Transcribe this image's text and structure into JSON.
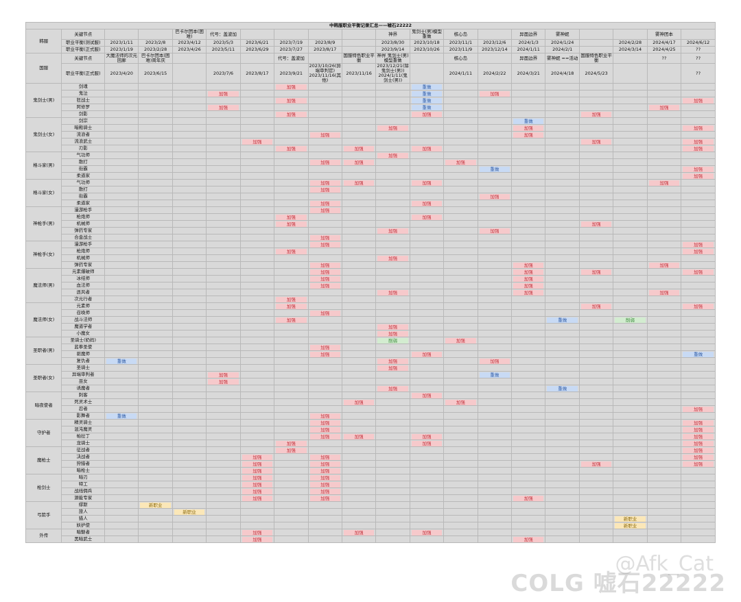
{
  "title": "中韩服职业平衡记录汇总——嘘石22222",
  "watermark": {
    "brand": "COLG",
    "handle": "@Afk_Cat",
    "sub": "嘘石22222"
  },
  "colors": {
    "buff": "#f6c9cb",
    "rework": "#c8daf4",
    "nerf": "#d3ecd0",
    "new": "#fbe7b8"
  },
  "header": {
    "korea_label": "韩服",
    "china_label": "国服",
    "key_node_label": "关键节点",
    "test_label": "职业平衡(测试服)",
    "formal_label": "职业平衡(正式服)",
    "korea_nodes": [
      "",
      "",
      "巴卡尔团本(困难)",
      "代号：盖波加",
      "",
      "",
      "",
      "",
      "神界",
      "鬼剑士(男)模型重做",
      "核心岛",
      "",
      "异面边界",
      "雾神妮",
      "",
      "",
      "雾神团本",
      ""
    ],
    "korea_test": [
      "2023/1/11",
      "2023/2/8",
      "2023/4/12",
      "2023/5/3",
      "2023/6/21",
      "2023/7/19",
      "2023/8/9",
      "",
      "2023/8/30",
      "2023/10/18",
      "2023/11/1",
      "2023/12/6",
      "2024/1/3",
      "2024/1/24",
      "",
      "2024/2/28",
      "2024/4/17",
      "2024/6/12"
    ],
    "korea_formal": [
      "2023/1/19",
      "2023/2/28",
      "2023/4/26",
      "2023/5/11",
      "2023/6/29",
      "2023/7/27",
      "2023/8/17",
      "",
      "2023/9/14",
      "2023/10/26",
      "2023/11/9",
      "2023/12/14",
      "2024/1/11",
      "2024/2/1",
      "",
      "2024/3/14",
      "2024/4/25",
      "??"
    ],
    "china_nodes": [
      "大魔法师的次元回廊",
      "巴卡尔团本(困难)周年庆",
      "",
      "",
      "",
      "代号：盖波加",
      "",
      "国服特色职业平衡",
      "神界 鬼剑士(男)模型重做",
      "",
      "核心岛",
      "",
      "异面边界",
      "雾神妮 ==活动",
      "国服特色职业平衡",
      "",
      "??",
      "??"
    ],
    "china_formal": [
      "2023/4/20",
      "2023/6/15",
      "",
      "2023/7/6",
      "2023/8/17",
      "2023/9/21",
      "2023/10/26(异端审判官)\n2023/11/16(其他)",
      "2023/11/16",
      "2023/12/21(除鬼剑士(男))\n2024/1/11(鬼剑士(男))",
      "",
      "2024/1/11",
      "2024/2/22",
      "2024/3/21",
      "2024/4/18",
      "2024/5/23",
      "",
      "",
      "??"
    ]
  },
  "groups": [
    {
      "name": "鬼剑士(男)",
      "rows": [
        {
          "job": "剑魂",
          "cells": {
            "5": "buff",
            "9": "rework"
          }
        },
        {
          "job": "鬼泣",
          "cells": {
            "3": "buff",
            "9": "rework",
            "11": "buff"
          }
        },
        {
          "job": "狂战士",
          "cells": {
            "5": "buff",
            "9": "rework",
            "17": "buff"
          }
        },
        {
          "job": "阿修罗",
          "cells": {
            "3": "buff",
            "9": "rework",
            "16": "buff"
          }
        },
        {
          "job": "剑影",
          "cells": {
            "5": "buff",
            "9": "buff",
            "14": "buff"
          }
        }
      ]
    },
    {
      "name": "鬼剑士(女)",
      "rows": [
        {
          "job": "剑宗",
          "cells": {
            "12": "rework"
          }
        },
        {
          "job": "暗殿骑士",
          "cells": {
            "8": "buff",
            "12": "buff",
            "17": "buff"
          }
        },
        {
          "job": "流浪者",
          "cells": {
            "6": "buff",
            "12": "buff"
          }
        },
        {
          "job": "流浪武士",
          "cells": {
            "4": "buff",
            "14": "buff",
            "17": "buff"
          }
        },
        {
          "job": "刃影",
          "cells": {
            "5": "buff",
            "7": "buff",
            "9": "buff",
            "17": "buff"
          }
        }
      ]
    },
    {
      "name": "格斗家(男)",
      "rows": [
        {
          "job": "气功师",
          "cells": {
            "8": "buff"
          }
        },
        {
          "job": "散打",
          "cells": {
            "6": "buff",
            "7": "buff",
            "10": "buff"
          }
        },
        {
          "job": "街霸",
          "cells": {
            "11": "rework",
            "17": "buff"
          }
        },
        {
          "job": "柔道家",
          "cells": {
            "17": "buff"
          }
        }
      ]
    },
    {
      "name": "格斗家(女)",
      "rows": [
        {
          "job": "气功师",
          "cells": {
            "6": "buff",
            "7": "buff",
            "9": "buff",
            "16": "buff"
          }
        },
        {
          "job": "散打",
          "cells": {
            "6": "buff"
          }
        },
        {
          "job": "街霸",
          "cells": {
            "11": "buff"
          }
        },
        {
          "job": "柔道家",
          "cells": {
            "6": "buff",
            "9": "buff"
          }
        }
      ]
    },
    {
      "name": "神枪手(男)",
      "rows": [
        {
          "job": "漫游枪手",
          "cells": {
            "6": "buff"
          }
        },
        {
          "job": "枪炮师",
          "cells": {
            "5": "buff",
            "9": "buff"
          }
        },
        {
          "job": "机械师",
          "cells": {
            "5": "buff",
            "14": "buff"
          }
        },
        {
          "job": "弹药专家",
          "cells": {
            "8": "buff",
            "11": "buff"
          }
        },
        {
          "job": "合金战士",
          "cells": {
            "6": "buff"
          }
        }
      ]
    },
    {
      "name": "神枪手(女)",
      "rows": [
        {
          "job": "漫游枪手",
          "cells": {
            "6": "buff",
            "17": "buff"
          }
        },
        {
          "job": "枪炮师",
          "cells": {
            "5": "buff",
            "17": "buff"
          }
        },
        {
          "job": "机械师",
          "cells": {
            "8": "buff"
          }
        },
        {
          "job": "弹药专家",
          "cells": {
            "6": "buff",
            "12": "buff",
            "16": "buff"
          }
        }
      ]
    },
    {
      "name": "魔法师(男)",
      "rows": [
        {
          "job": "元素爆破师",
          "cells": {
            "6": "buff",
            "12": "buff",
            "14": "buff",
            "17": "buff"
          }
        },
        {
          "job": "冰结师",
          "cells": {
            "6": "buff",
            "12": "buff"
          }
        },
        {
          "job": "血法师",
          "cells": {
            "6": "buff",
            "12": "buff"
          }
        },
        {
          "job": "逐风者",
          "cells": {
            "8": "buff",
            "12": "buff",
            "16": "buff"
          }
        },
        {
          "job": "次元行者",
          "cells": {
            "5": "buff"
          }
        }
      ]
    },
    {
      "name": "魔法师(女)",
      "rows": [
        {
          "job": "元素师",
          "cells": {
            "5": "buff",
            "14": "buff",
            "17": "buff"
          }
        },
        {
          "job": "召唤师",
          "cells": {
            "6": "buff"
          }
        },
        {
          "job": "战斗法师",
          "cells": {
            "5": "buff",
            "13": "rework",
            "15": "nerf"
          }
        },
        {
          "job": "魔道学者",
          "cells": {
            "8": "buff"
          }
        },
        {
          "job": "小魔女",
          "cells": {
            "8": "buff"
          }
        }
      ]
    },
    {
      "name": "圣职者(男)",
      "rows": [
        {
          "job": "圣骑士(奶妈)",
          "cells": {
            "8": "nerf",
            "10": "buff"
          }
        },
        {
          "job": "蓝拳圣使",
          "cells": {
            "6": "buff"
          }
        },
        {
          "job": "驱魔师",
          "cells": {
            "6": "buff",
            "9": "buff",
            "17": "rework"
          }
        },
        {
          "job": "复仇者",
          "cells": {
            "0": "rework",
            "8": "buff",
            "11": "buff"
          }
        }
      ]
    },
    {
      "name": "圣职者(女)",
      "rows": [
        {
          "job": "圣骑士",
          "cells": {
            "8": "buff"
          }
        },
        {
          "job": "异端审判者",
          "cells": {
            "3": "buff",
            "11": "rework"
          }
        },
        {
          "job": "巫女",
          "cells": {
            "3": "buff"
          }
        },
        {
          "job": "诱魔者",
          "cells": {
            "8": "buff",
            "13": "rework"
          }
        }
      ]
    },
    {
      "name": "暗夜使者",
      "rows": [
        {
          "job": "刺客",
          "cells": {
            "9": "buff"
          }
        },
        {
          "job": "死灵术士",
          "cells": {
            "7": "buff",
            "10": "buff"
          }
        },
        {
          "job": "忍者",
          "cells": {
            "17": "buff"
          }
        },
        {
          "job": "影舞者",
          "cells": {
            "0": "rework",
            "6": "buff"
          }
        }
      ]
    },
    {
      "name": "守护者",
      "rows": [
        {
          "job": "精灵骑士",
          "cells": {
            "6": "buff",
            "17": "buff"
          }
        },
        {
          "job": "混沌魔灵",
          "cells": {
            "6": "buff",
            "17": "buff"
          }
        },
        {
          "job": "帕拉丁",
          "cells": {
            "6": "buff",
            "7": "buff",
            "9": "buff",
            "17": "buff"
          }
        },
        {
          "job": "龙骑士",
          "cells": {
            "5": "buff",
            "9": "buff",
            "17": "buff"
          }
        }
      ]
    },
    {
      "name": "魔枪士",
      "rows": [
        {
          "job": "征战者",
          "cells": {
            "5": "buff",
            "17": "buff"
          }
        },
        {
          "job": "决战者",
          "cells": {
            "4": "buff",
            "6": "buff",
            "17": "buff"
          }
        },
        {
          "job": "狩猎者",
          "cells": {
            "4": "buff",
            "6": "buff",
            "14": "buff",
            "17": "buff"
          }
        },
        {
          "job": "暗枪士",
          "cells": {
            "4": "buff",
            "6": "buff"
          }
        }
      ]
    },
    {
      "name": "枪剑士",
      "rows": [
        {
          "job": "暗刃",
          "cells": {
            "4": "buff",
            "6": "buff"
          }
        },
        {
          "job": "特工",
          "cells": {
            "4": "buff",
            "6": "buff"
          }
        },
        {
          "job": "战线佣兵",
          "cells": {
            "4": "buff",
            "6": "buff"
          }
        },
        {
          "job": "源能专家",
          "cells": {
            "4": "buff",
            "6": "buff",
            "12": "buff"
          }
        }
      ]
    },
    {
      "name": "弓箭手",
      "rows": [
        {
          "job": "缪斯",
          "cells": {
            "1": "new"
          }
        },
        {
          "job": "旅人",
          "cells": {
            "2": "new"
          }
        },
        {
          "job": "猎人",
          "cells": {
            "15": "new"
          }
        },
        {
          "job": "妖护使",
          "cells": {
            "15": "new"
          }
        }
      ]
    },
    {
      "name": "外传",
      "rows": [
        {
          "job": "暗魅者",
          "cells": {
            "4": "buff",
            "7": "buff",
            "9": "buff"
          }
        },
        {
          "job": "黑暗武士",
          "cells": {
            "4": "buff",
            "12": "buff"
          }
        }
      ]
    }
  ],
  "labels": {
    "buff": "加强",
    "rework": "重做",
    "nerf": "削弱",
    "new": "新职业"
  }
}
